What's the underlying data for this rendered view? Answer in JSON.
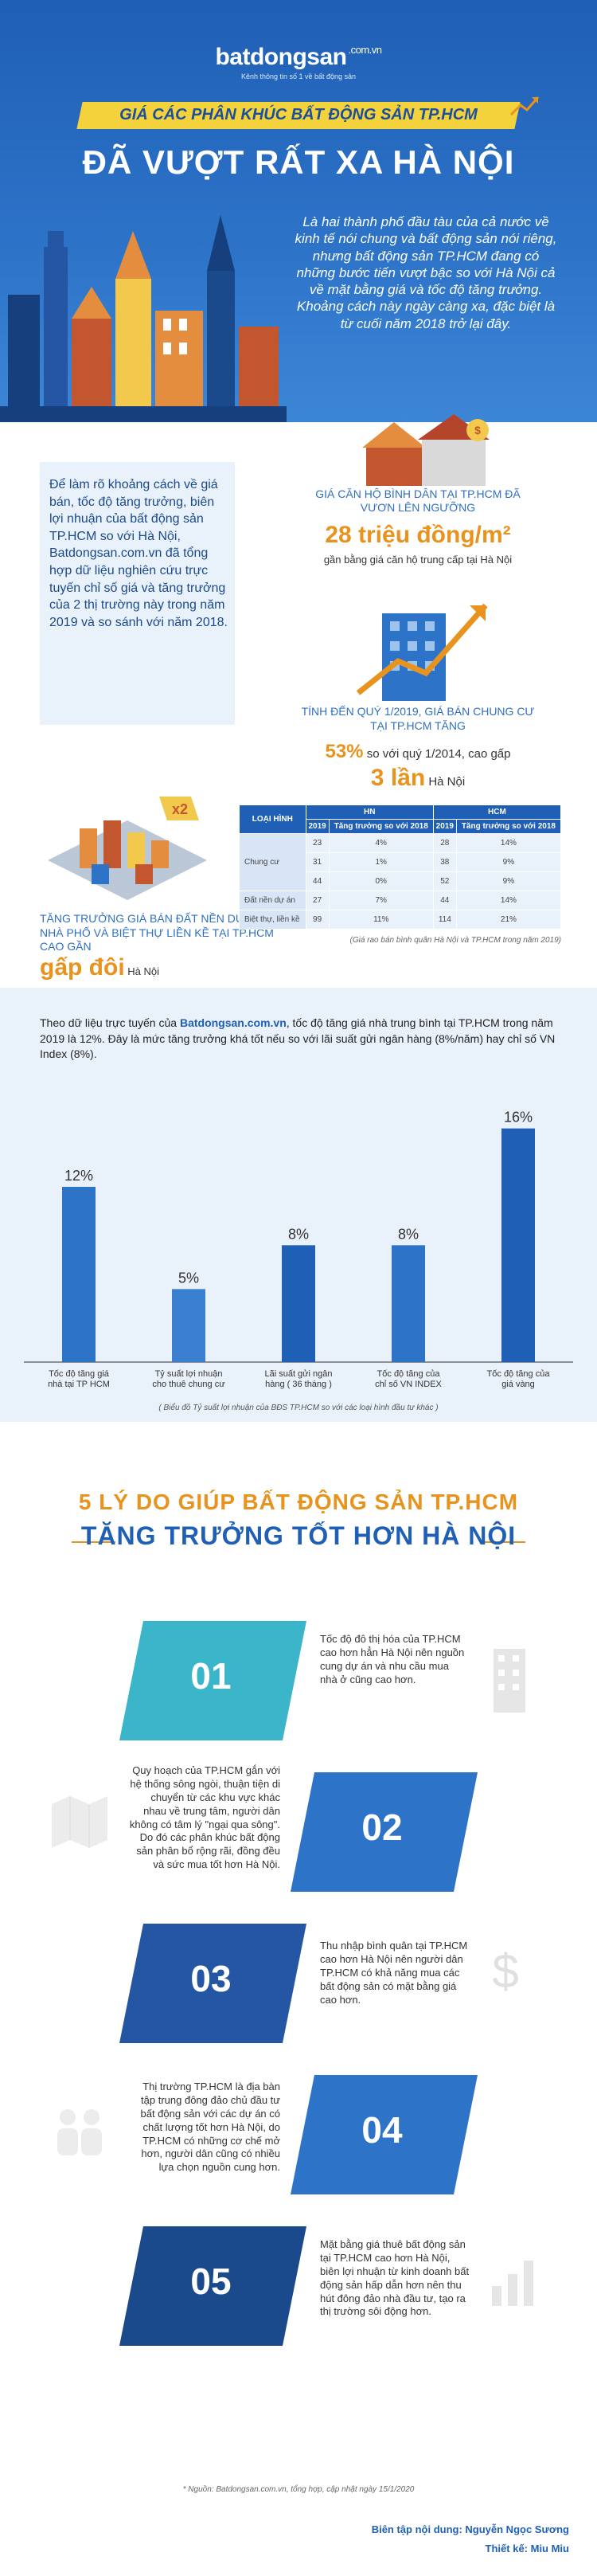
{
  "brand": {
    "name": "batdongsan",
    "domain": ".com.vn",
    "tagline": "Kênh thông tin số 1 về bất động sản"
  },
  "hero": {
    "subtitle": "GIÁ CÁC PHÂN KHÚC BẤT ĐỘNG SẢN TP.HCM",
    "title": "ĐÃ VƯỢT RẤT XA HÀ NỘI",
    "text": "Là hai thành phố đầu tàu của cả nước về kinh tế nói chung và bất động sản nói riêng, nhưng bất động sản TP.HCM đang có những bước tiến vượt bậc so với Hà Nội cả về mặt bằng giá và tốc độ tăng trưởng. Khoảng cách này ngày càng xa, đặc biệt là từ cuối năm 2018 trở lại đây."
  },
  "intro": "Để làm rõ khoảng cách về giá bán, tốc độ tăng trưởng, biên lợi nhuận của bất động sản TP.HCM so với Hà Nội, Batdongsan.com.vn đã tổng hợp dữ liệu nghiên cứu trực tuyến chỉ số giá và tăng trưởng của 2 thị trường này trong năm 2019 và so sánh với năm 2018.",
  "stat1": {
    "label": "GIÁ CĂN HỘ BÌNH DÂN TẠI TP.HCM ĐÃ VƯƠN LÊN NGƯỠNG",
    "value": "28 triệu đồng/m²",
    "sub": "gần bằng giá căn hộ trung cấp tại Hà Nội"
  },
  "stat2": {
    "label": "TÍNH ĐẾN QUÝ 1/2019, GIÁ BÁN CHUNG CƯ TẠI TP.HCM TĂNG",
    "pct": "53%",
    "pct_text": "so với quý 1/2014, cao gấp",
    "big": "3 lần",
    "big_text": "Hà Nội"
  },
  "land": {
    "label": "TĂNG TRƯỞNG GIÁ BÁN ĐẤT NỀN DỰ ÁN, NHÀ PHỐ VÀ BIỆT THỰ LIỀN KỀ TẠI TP.HCM CAO GẦN",
    "big": "gấp đôi",
    "big_text": "Hà Nội",
    "badge": "x2"
  },
  "table": {
    "col_type": "LOẠI HÌNH",
    "col_hn": "HN",
    "col_hcm": "HCM",
    "sub_2019": "2019",
    "sub_growth": "Tăng trưởng so với 2018",
    "rows": [
      {
        "type": "Chung cư",
        "hn": "23",
        "hn_g": "4%",
        "hcm": "28",
        "hcm_g": "14%"
      },
      {
        "type": "",
        "hn": "31",
        "hn_g": "1%",
        "hcm": "38",
        "hcm_g": "9%"
      },
      {
        "type": "",
        "hn": "44",
        "hn_g": "0%",
        "hcm": "52",
        "hcm_g": "9%"
      },
      {
        "type": "Đất nền dự án",
        "hn": "27",
        "hn_g": "7%",
        "hcm": "44",
        "hcm_g": "14%"
      },
      {
        "type": "Biệt thự, liền kề",
        "hn": "99",
        "hn_g": "11%",
        "hcm": "114",
        "hcm_g": "21%"
      }
    ],
    "note": "(Giá rao bán bình quân Hà Nội và TP.HCM trong năm 2019)"
  },
  "chart_intro": {
    "brand": "Batdongsan.com.vn",
    "pre": "Theo dữ liệu trực tuyến của ",
    "post": ", tốc độ tăng giá nhà trung bình tại TP.HCM trong năm 2019 là 12%. Đây là mức tăng trưởng khá tốt nếu so với lãi suất gửi ngân hàng (8%/năm) hay chỉ số VN Index (8%)."
  },
  "chart_data": {
    "type": "bar",
    "categories": [
      "Tốc độ tăng giá nhà tại TP HCM",
      "Tỷ suất lợi nhuận cho thuê chung cư",
      "Lãi suất gửi ngân hàng ( 36 tháng )",
      "Tốc độ tăng của chỉ số VN INDEX",
      "Tốc độ tăng của giá vàng"
    ],
    "values": [
      12,
      5,
      8,
      8,
      16
    ],
    "labels": [
      "12%",
      "5%",
      "8%",
      "8%",
      "16%"
    ],
    "title": "",
    "xlabel": "",
    "ylabel": "",
    "ylim": [
      0,
      18
    ],
    "footnote": "( Biểu đồ Tỷ suất lợi nhuận của BĐS TP.HCM so với các loại hình đầu tư khác )"
  },
  "reasons": {
    "title1": "5 LÝ DO GIÚP BẤT ĐỘNG SẢN TP.HCM",
    "title2": "TĂNG TRƯỞNG TỐT HƠN HÀ NỘI",
    "items": [
      {
        "num": "01",
        "text": "Tốc độ đô thị hóa của TP.HCM cao hơn hẳn Hà Nội nên nguồn cung dự án và nhu cầu mua nhà ở cũng cao hơn."
      },
      {
        "num": "02",
        "text": "Quy hoạch của TP.HCM gắn với hệ thống sông ngòi, thuận tiện di chuyển từ các khu vực khác nhau về trung tâm, người dân không có tâm lý \"ngại qua sông\". Do đó các phân khúc bất động sản phân bổ rộng rãi, đồng đều và sức mua tốt hơn Hà Nội."
      },
      {
        "num": "03",
        "text": "Thu nhập bình quân tại TP.HCM cao hơn Hà Nội nên người dân TP.HCM có khả năng mua các bất động sản có mặt bằng giá cao hơn."
      },
      {
        "num": "04",
        "text": "Thị trường TP.HCM là địa bàn tập trung đông đảo chủ đầu tư bất động sản với các dự án có chất lượng tốt hơn Hà Nội, do TP.HCM có những cơ chế mở hơn, người dân cũng có nhiều lựa chọn nguồn cung hơn."
      },
      {
        "num": "05",
        "text": "Mặt bằng giá thuê bất động sản tại TP.HCM cao hơn Hà Nội, biên lợi nhuận từ kinh doanh bất động sản hấp dẫn hơn nên thu hút đông đảo nhà đầu tư, tạo ra thị trường sôi động hơn."
      }
    ]
  },
  "source": "* Nguồn: Batdongsan.com.vn, tổng hợp, cập nhật ngày 15/1/2020",
  "credits": {
    "content": "Biên tập nội dung: Nguyễn Ngọc Sương",
    "design": "Thiết kế: Miu Miu"
  },
  "colors": {
    "blue": "#1f5fb5",
    "orange": "#e8931e",
    "teal": "#3ab5c9",
    "light": "#e9f1fb"
  }
}
